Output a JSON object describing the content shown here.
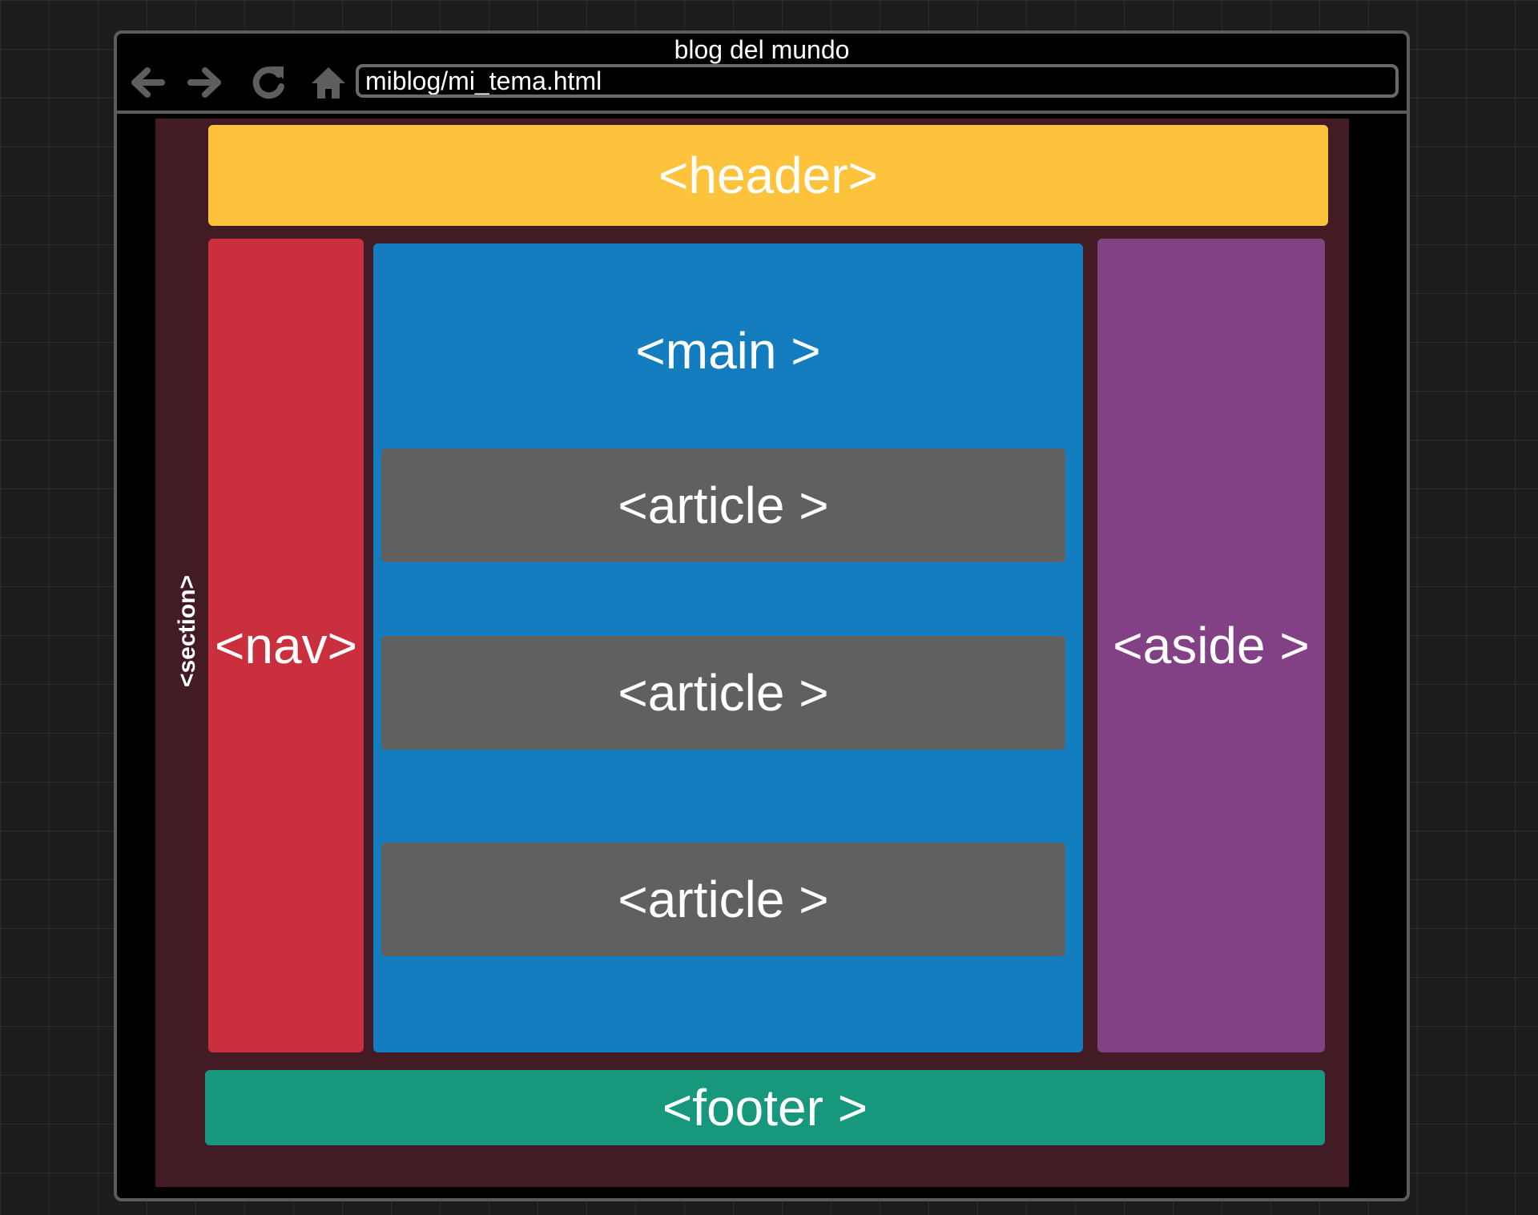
{
  "window": {
    "title": "blog del mundo",
    "url": "miblog/mi_tema.html"
  },
  "toolbar": {
    "icons": [
      "back-arrow-icon",
      "forward-arrow-icon",
      "reload-icon",
      "home-icon"
    ]
  },
  "layout": {
    "section_label": "<section>",
    "header_label": "<header>",
    "nav_label": "<nav>",
    "main_label": "<main >",
    "articles": [
      "<article >",
      "<article >",
      "<article >"
    ],
    "aside_label": "<aside >",
    "footer_label": "<footer >"
  },
  "colors": {
    "header": "#fdc33d",
    "nav": "#c92f3c",
    "main": "#147dbf",
    "article": "#606060",
    "aside": "#834185",
    "footer": "#17977c",
    "section": "#431b25"
  }
}
